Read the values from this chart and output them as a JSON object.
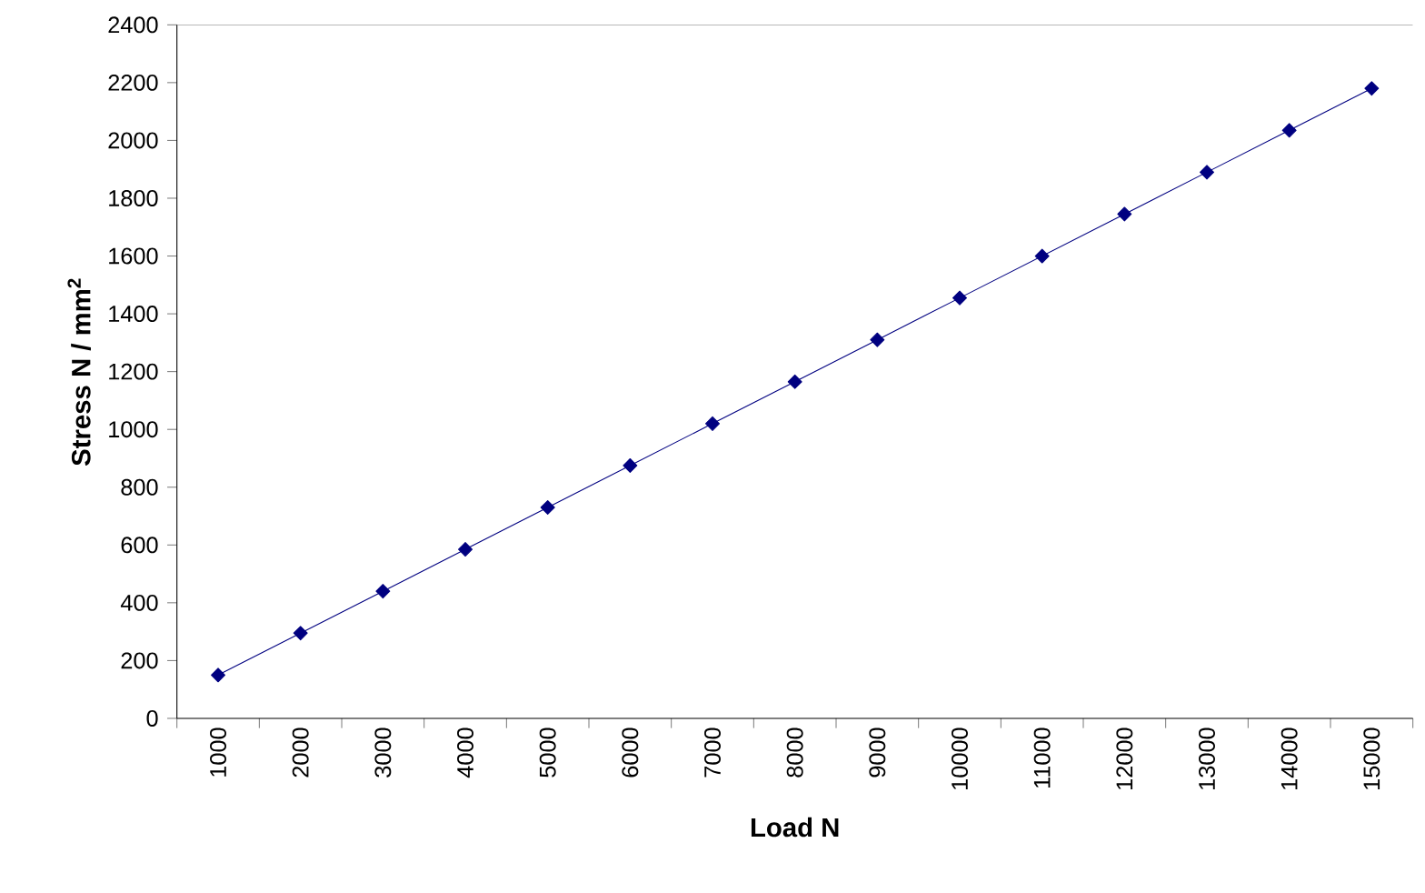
{
  "chart_data": {
    "type": "line",
    "xlabel": "Load N",
    "ylabel": "Stress N / mm$^{2}$",
    "categories": [
      "1000",
      "2000",
      "3000",
      "4000",
      "5000",
      "6000",
      "7000",
      "8000",
      "9000",
      "10000",
      "11000",
      "12000",
      "13000",
      "14000",
      "15000"
    ],
    "series": [
      {
        "color": "#000080",
        "values": [
          150,
          295,
          440,
          585,
          730,
          875,
          1020,
          1165,
          1310,
          1455,
          1600,
          1745,
          1890,
          2035,
          2180
        ]
      }
    ],
    "ylim": [
      0,
      2400
    ],
    "yticks": [
      0,
      200,
      400,
      600,
      800,
      1000,
      1200,
      1400,
      1600,
      1800,
      2000,
      2200,
      2400
    ],
    "marker": "diamond",
    "line_style": "solid",
    "grid": false
  }
}
